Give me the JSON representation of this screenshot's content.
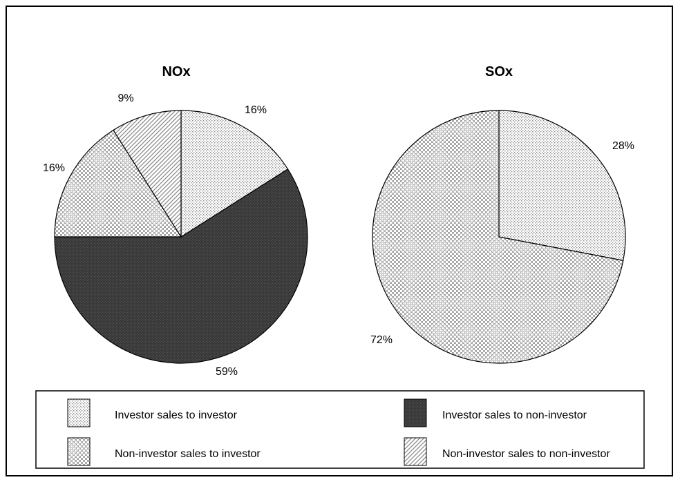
{
  "chart_data": [
    {
      "type": "pie",
      "title": "NOx",
      "slices": [
        {
          "label": "Investor sales to investor",
          "value": 16,
          "display": "16%",
          "pattern": "dots"
        },
        {
          "label": "Investor sales to non-investor",
          "value": 59,
          "display": "59%",
          "pattern": "dark"
        },
        {
          "label": "Non-investor sales to investor",
          "value": 16,
          "display": "16%",
          "pattern": "check"
        },
        {
          "label": "Non-investor sales to non-investor",
          "value": 9,
          "display": "9%",
          "pattern": "diag"
        }
      ]
    },
    {
      "type": "pie",
      "title": "SOx",
      "slices": [
        {
          "label": "Investor sales to investor",
          "value": 28,
          "display": "28%",
          "pattern": "dots"
        },
        {
          "label": "Non-investor sales to investor",
          "value": 72,
          "display": "72%",
          "pattern": "check"
        }
      ]
    }
  ],
  "legend": [
    {
      "label": "Investor sales to investor",
      "pattern": "dots"
    },
    {
      "label": "Investor sales to non-investor",
      "pattern": "dark"
    },
    {
      "label": "Non-investor sales to investor",
      "pattern": "check"
    },
    {
      "label": "Non-investor sales to non-investor",
      "pattern": "diag"
    }
  ],
  "colors": {
    "dark": "#3a3a3a",
    "dot": "#8a8a8a",
    "check": "#9a9a9a",
    "diag": "#8a8a8a"
  }
}
